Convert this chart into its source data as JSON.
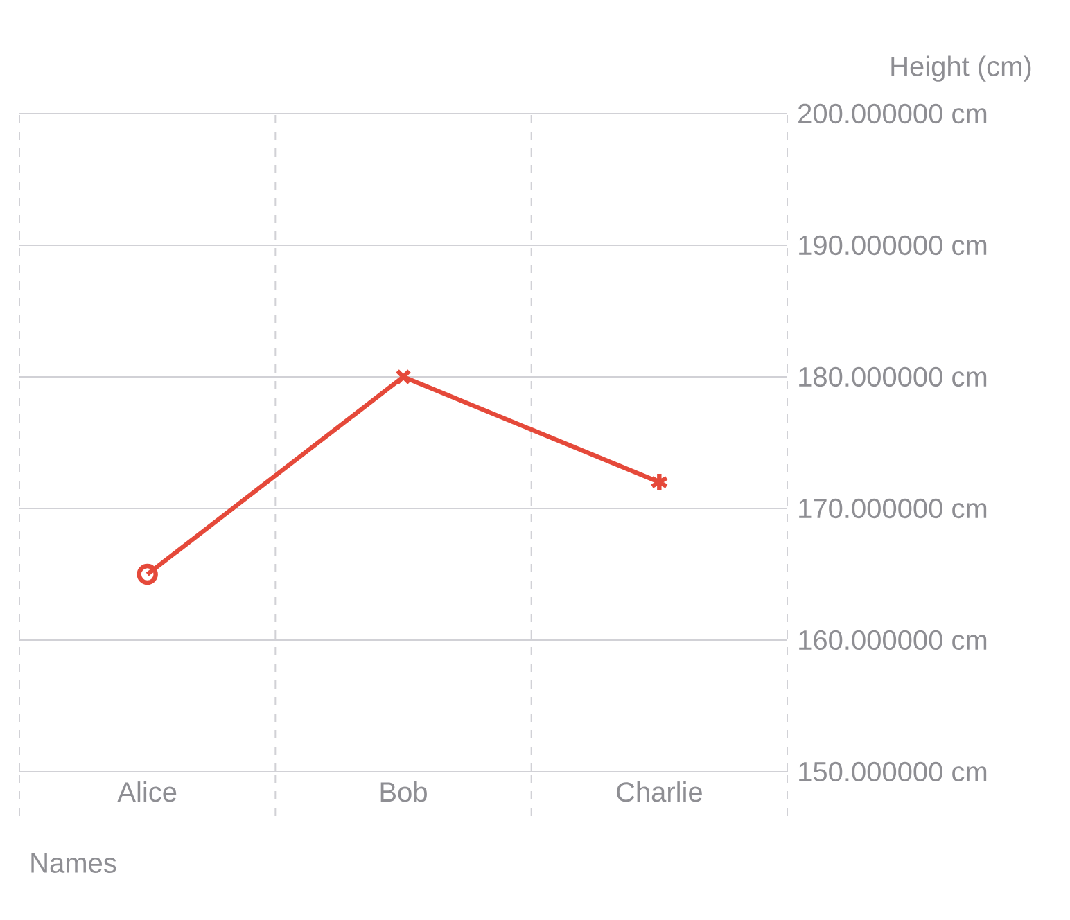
{
  "chart_data": {
    "type": "line",
    "xlabel": "Names",
    "ylabel": "Height (cm)",
    "categories": [
      "Alice",
      "Bob",
      "Charlie"
    ],
    "series": [
      {
        "color": "#e5493a",
        "values": [
          165,
          180,
          172
        ]
      }
    ],
    "ylim": [
      150,
      200
    ],
    "yticks": [
      {
        "value": 150,
        "label": "150.000000 cm"
      },
      {
        "value": 160,
        "label": "160.000000 cm"
      },
      {
        "value": 170,
        "label": "170.000000 cm"
      },
      {
        "value": 180,
        "label": "180.000000 cm"
      },
      {
        "value": 190,
        "label": "190.000000 cm"
      },
      {
        "value": 200,
        "label": "200.000000 cm"
      }
    ],
    "grid": true,
    "marker": [
      "circle",
      "cross",
      "star"
    ],
    "line_style": "solid"
  }
}
